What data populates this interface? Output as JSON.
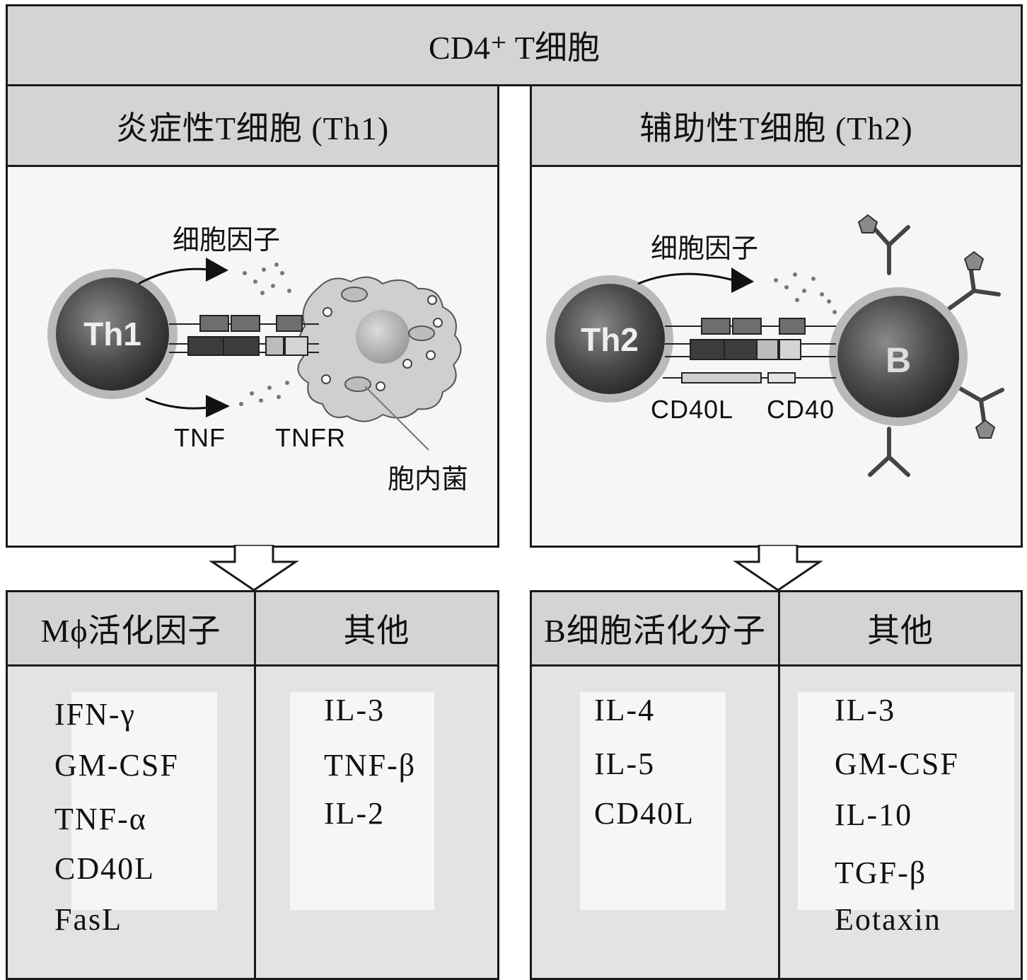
{
  "top": {
    "title": "CD4⁺ T细胞"
  },
  "th1": {
    "header": "炎症性T细胞 (Th1)",
    "cell_label": "Th1",
    "cytokine_label": "细胞因子",
    "tnf_label": "TNF",
    "tnfr_label": "TNFR",
    "bacteria_label": "胞内菌",
    "col1_header": "Mϕ活化因子",
    "col2_header": "其他",
    "col1_items": [
      "IFN-γ",
      "GM-CSF",
      "TNF-α",
      "CD40L",
      "FasL"
    ],
    "col2_items": [
      "IL-3",
      "TNF-β",
      "IL-2"
    ]
  },
  "th2": {
    "header": "辅助性T细胞 (Th2)",
    "cell_label": "Th2",
    "b_label": "B",
    "cytokine_label": "细胞因子",
    "cd40l_label": "CD40L",
    "cd40_label": "CD40",
    "col1_header": "B细胞活化分子",
    "col2_header": "其他",
    "col1_items": [
      "IL-4",
      "IL-5",
      "CD40L"
    ],
    "col2_items": [
      "IL-3",
      "GM-CSF",
      "IL-10",
      "TGF-β",
      "Eotaxin"
    ]
  }
}
